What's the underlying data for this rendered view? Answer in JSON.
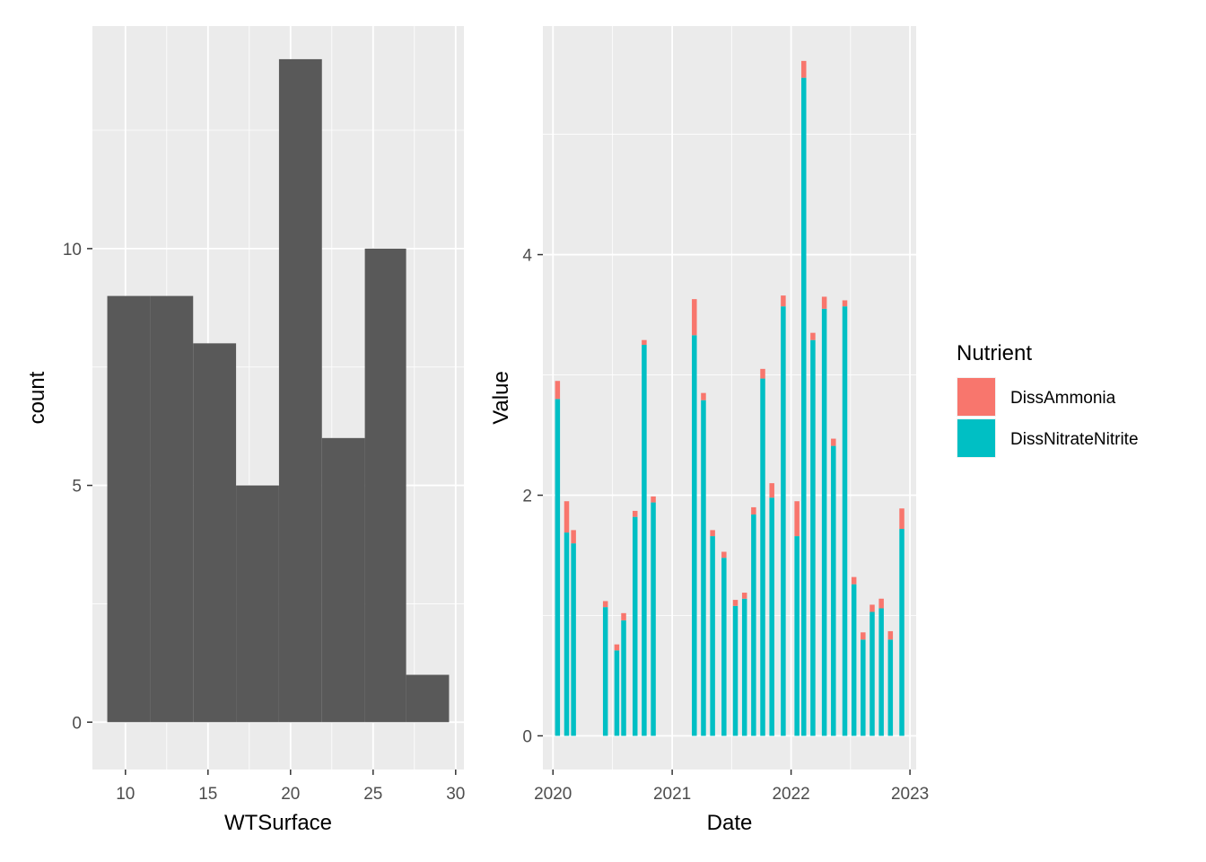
{
  "chart_data": [
    {
      "type": "histogram",
      "xlabel": "WTSurface",
      "ylabel": "count",
      "xlim": [
        8.0,
        30.5
      ],
      "ylim": [
        -1.0,
        14.7
      ],
      "xticks": [
        "10",
        "15",
        "20",
        "25",
        "30"
      ],
      "yticks": [
        "0",
        "5",
        "10"
      ],
      "grid": true,
      "bar_color": "#595959",
      "bins": [
        {
          "x0": 8.9,
          "x1": 11.5,
          "count": 9
        },
        {
          "x0": 11.5,
          "x1": 14.1,
          "count": 9
        },
        {
          "x0": 14.1,
          "x1": 16.7,
          "count": 8
        },
        {
          "x0": 16.7,
          "x1": 19.3,
          "count": 5
        },
        {
          "x0": 19.3,
          "x1": 21.9,
          "count": 14
        },
        {
          "x0": 21.9,
          "x1": 24.5,
          "count": 6
        },
        {
          "x0": 24.5,
          "x1": 27.0,
          "count": 10
        },
        {
          "x0": 27.0,
          "x1": 29.6,
          "count": 1
        }
      ]
    },
    {
      "type": "bar",
      "stacked": true,
      "xlabel": "Date",
      "ylabel": "Value",
      "xlim": [
        "2019-12-01",
        "2023-01-20"
      ],
      "ylim": [
        -0.28,
        5.9
      ],
      "xticks": [
        {
          "date": "2020-01-01",
          "label": "2020"
        },
        {
          "date": "2021-01-01",
          "label": "2021"
        },
        {
          "date": "2022-01-01",
          "label": "2022"
        },
        {
          "date": "2023-01-01",
          "label": "2023"
        }
      ],
      "yticks": [
        "0",
        "2",
        "4"
      ],
      "grid": true,
      "legend": {
        "title": "Nutrient",
        "position": "right",
        "entries": [
          {
            "label": "DissAmmonia",
            "color": "#F8766D"
          },
          {
            "label": "DissNitrateNitrite",
            "color": "#00BFC4"
          }
        ]
      },
      "stack_order": [
        "DissNitrateNitrite",
        "DissAmmonia"
      ],
      "categories": [
        "2020-01-15",
        "2020-02-12",
        "2020-03-04",
        "2020-06-10",
        "2020-07-15",
        "2020-08-05",
        "2020-09-09",
        "2020-10-07",
        "2020-11-04",
        "2021-03-10",
        "2021-04-07",
        "2021-05-05",
        "2021-06-09",
        "2021-07-14",
        "2021-08-11",
        "2021-09-08",
        "2021-10-06",
        "2021-11-03",
        "2021-12-08",
        "2022-01-19",
        "2022-02-09",
        "2022-03-09",
        "2022-04-13",
        "2022-05-11",
        "2022-06-15",
        "2022-07-13",
        "2022-08-10",
        "2022-09-07",
        "2022-10-05",
        "2022-11-02",
        "2022-12-07"
      ],
      "series": [
        {
          "name": "DissNitrateNitrite",
          "values": [
            2.8,
            1.69,
            1.6,
            1.07,
            0.71,
            0.96,
            1.82,
            3.25,
            1.94,
            3.33,
            2.79,
            1.66,
            1.48,
            1.08,
            1.14,
            1.84,
            2.97,
            1.98,
            3.57,
            1.66,
            5.47,
            3.29,
            3.55,
            2.41,
            3.57,
            1.26,
            0.8,
            1.03,
            1.06,
            0.8,
            1.72
          ]
        },
        {
          "name": "DissAmmonia",
          "values": [
            0.15,
            0.26,
            0.11,
            0.05,
            0.05,
            0.06,
            0.05,
            0.04,
            0.05,
            0.3,
            0.06,
            0.05,
            0.05,
            0.05,
            0.05,
            0.06,
            0.08,
            0.12,
            0.09,
            0.29,
            0.14,
            0.06,
            0.1,
            0.06,
            0.05,
            0.06,
            0.06,
            0.06,
            0.08,
            0.07,
            0.17
          ]
        }
      ]
    }
  ]
}
